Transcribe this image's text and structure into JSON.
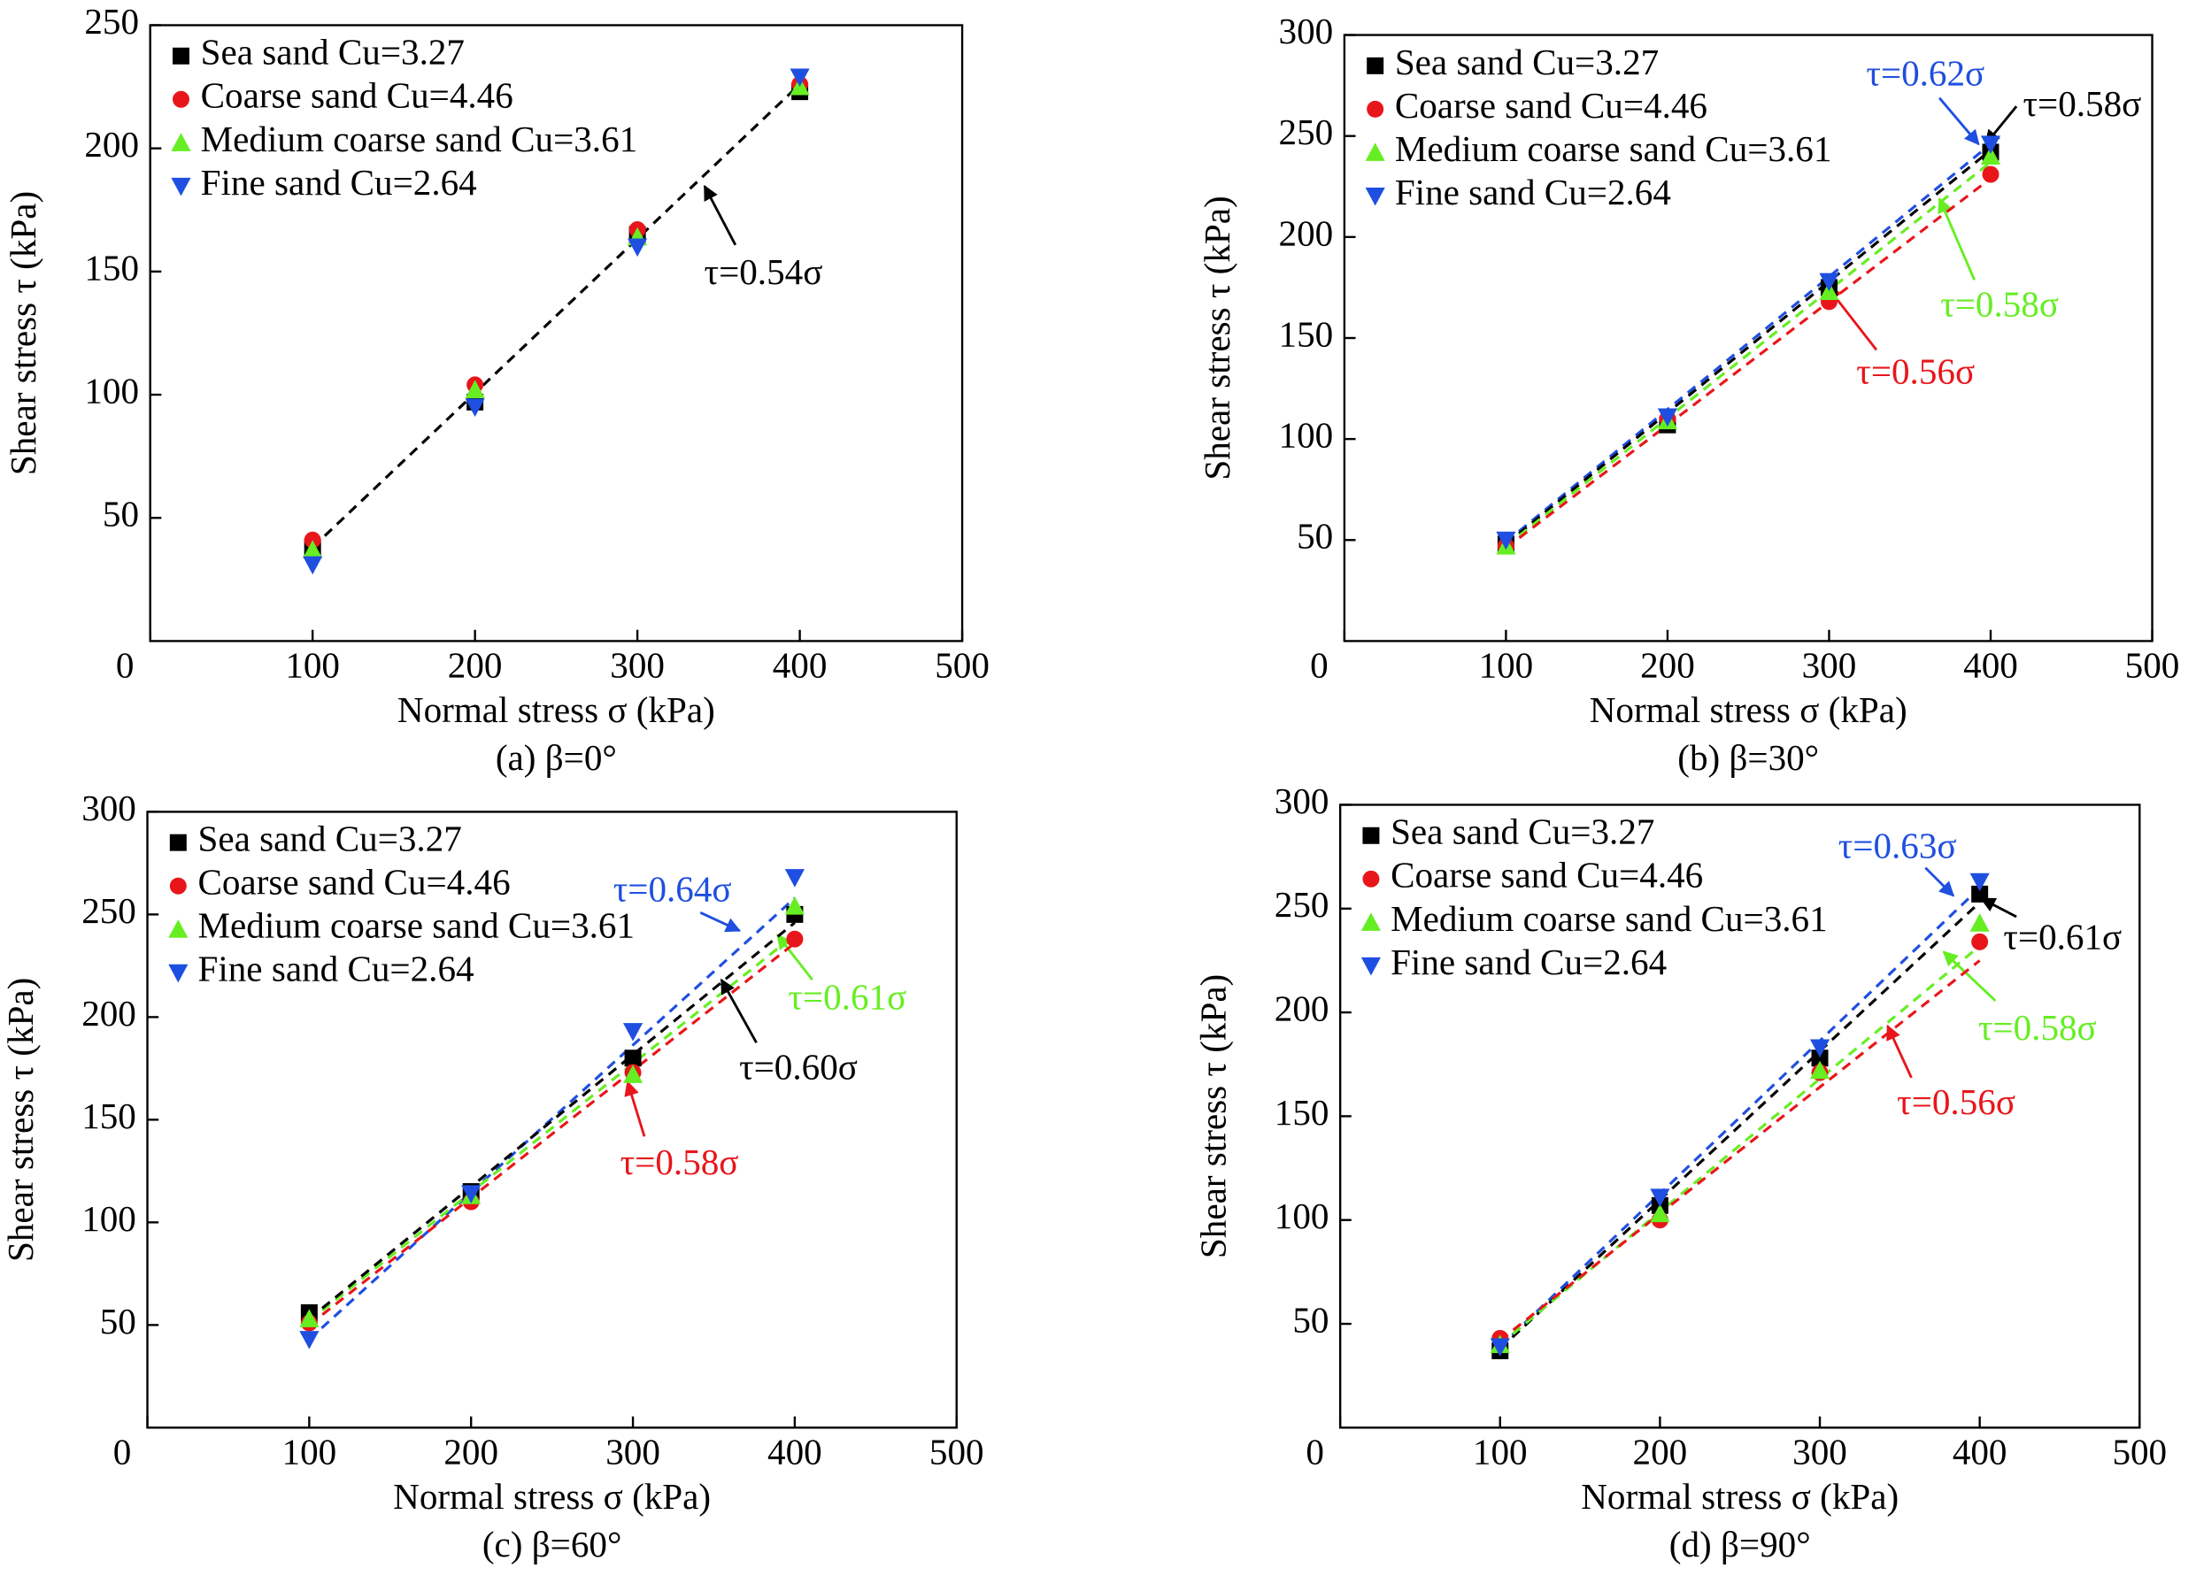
{
  "chart_data": [
    {
      "type": "scatter",
      "caption": "(a) β=0°",
      "xlabel": "Normal stress σ (kPa)",
      "ylabel": "Shear stress τ (kPa)",
      "x": [
        100,
        200,
        300,
        400
      ],
      "xlim": [
        0,
        500
      ],
      "xticks": [
        0,
        100,
        200,
        300,
        400,
        500
      ],
      "ylim": [
        0,
        250
      ],
      "yticks": [
        50,
        100,
        150,
        200,
        250
      ],
      "series": [
        {
          "name": "Sea sand Cu=3.27",
          "color": "#000000",
          "marker": "square",
          "values": [
            38,
            97,
            165,
            223
          ]
        },
        {
          "name": "Coarse sand Cu=4.46",
          "color": "#e8161b",
          "marker": "circle",
          "values": [
            41,
            104,
            167,
            226
          ]
        },
        {
          "name": "Medium coarse sand Cu=3.61",
          "color": "#66ee22",
          "marker": "triangle-up",
          "values": [
            37,
            102,
            164,
            225
          ]
        },
        {
          "name": "Fine sand Cu=2.64",
          "color": "#1f4fe0",
          "marker": "triangle-down",
          "values": [
            31,
            95,
            160,
            229
          ]
        }
      ],
      "fit_lines": [
        {
          "label": "τ=0.54σ",
          "color": "#000000",
          "x": [
            100,
            400
          ],
          "y": [
            38,
            226
          ]
        }
      ]
    },
    {
      "type": "scatter",
      "caption": "(b) β=30°",
      "xlabel": "Normal stress σ (kPa)",
      "ylabel": "Shear stress τ (kPa)",
      "x": [
        100,
        200,
        300,
        400
      ],
      "xlim": [
        0,
        500
      ],
      "xticks": [
        0,
        100,
        200,
        300,
        400,
        500
      ],
      "ylim": [
        0,
        300
      ],
      "yticks": [
        50,
        100,
        150,
        200,
        250,
        300
      ],
      "series": [
        {
          "name": "Sea sand Cu=3.27",
          "color": "#000000",
          "marker": "square",
          "values": [
            48,
            107,
            175,
            242
          ]
        },
        {
          "name": "Coarse sand Cu=4.46",
          "color": "#e8161b",
          "marker": "circle",
          "values": [
            47,
            110,
            168,
            231
          ]
        },
        {
          "name": "Medium coarse sand Cu=3.61",
          "color": "#66ee22",
          "marker": "triangle-up",
          "values": [
            47,
            109,
            173,
            240
          ]
        },
        {
          "name": "Fine sand Cu=2.64",
          "color": "#1f4fe0",
          "marker": "triangle-down",
          "values": [
            50,
            111,
            178,
            246
          ]
        }
      ],
      "fit_lines": [
        {
          "label": "τ=0.62σ",
          "color": "#1f4fe0",
          "x": [
            100,
            400
          ],
          "y": [
            49,
            246
          ]
        },
        {
          "label": "τ=0.58σ",
          "color": "#000000",
          "x": [
            100,
            400
          ],
          "y": [
            48,
            243
          ]
        },
        {
          "label": "τ=0.58σ",
          "color": "#66ee22",
          "x": [
            100,
            400
          ],
          "y": [
            47,
            237
          ]
        },
        {
          "label": "τ=0.56σ",
          "color": "#e8161b",
          "x": [
            100,
            400
          ],
          "y": [
            46,
            229
          ]
        }
      ]
    },
    {
      "type": "scatter",
      "caption": "(c) β=60°",
      "xlabel": "Normal stress σ (kPa)",
      "ylabel": "Shear stress τ (kPa)",
      "x": [
        100,
        200,
        300,
        400
      ],
      "xlim": [
        0,
        500
      ],
      "xticks": [
        0,
        100,
        200,
        300,
        400,
        500
      ],
      "ylim": [
        0,
        300
      ],
      "yticks": [
        50,
        100,
        150,
        200,
        250,
        300
      ],
      "series": [
        {
          "name": "Sea sand Cu=3.27",
          "color": "#000000",
          "marker": "square",
          "values": [
            56,
            115,
            180,
            250
          ]
        },
        {
          "name": "Coarse sand Cu=4.46",
          "color": "#e8161b",
          "marker": "circle",
          "values": [
            51,
            110,
            173,
            238
          ]
        },
        {
          "name": "Medium coarse sand Cu=3.61",
          "color": "#66ee22",
          "marker": "triangle-up",
          "values": [
            53,
            113,
            172,
            254
          ]
        },
        {
          "name": "Fine sand Cu=2.64",
          "color": "#1f4fe0",
          "marker": "triangle-down",
          "values": [
            43,
            114,
            193,
            268
          ]
        }
      ],
      "fit_lines": [
        {
          "label": "τ=0.64σ",
          "color": "#1f4fe0",
          "x": [
            100,
            400
          ],
          "y": [
            43,
            258
          ]
        },
        {
          "label": "τ=0.61σ",
          "color": "#66ee22",
          "x": [
            100,
            400
          ],
          "y": [
            52,
            240
          ]
        },
        {
          "label": "τ=0.60σ",
          "color": "#000000",
          "x": [
            100,
            400
          ],
          "y": [
            53,
            246
          ]
        },
        {
          "label": "τ=0.58σ",
          "color": "#e8161b",
          "x": [
            100,
            400
          ],
          "y": [
            50,
            236
          ]
        }
      ]
    },
    {
      "type": "scatter",
      "caption": "(d) β=90°",
      "xlabel": "Normal stress σ (kPa)",
      "ylabel": "Shear stress τ (kPa)",
      "x": [
        100,
        200,
        300,
        400
      ],
      "xlim": [
        0,
        500
      ],
      "xticks": [
        0,
        100,
        200,
        300,
        400,
        500
      ],
      "ylim": [
        0,
        300
      ],
      "yticks": [
        50,
        100,
        150,
        200,
        250,
        300
      ],
      "series": [
        {
          "name": "Sea sand Cu=3.27",
          "color": "#000000",
          "marker": "square",
          "values": [
            37,
            107,
            178,
            257
          ]
        },
        {
          "name": "Coarse sand Cu=4.46",
          "color": "#e8161b",
          "marker": "circle",
          "values": [
            43,
            100,
            171,
            234
          ]
        },
        {
          "name": "Medium coarse sand Cu=3.61",
          "color": "#66ee22",
          "marker": "triangle-up",
          "values": [
            40,
            103,
            172,
            243
          ]
        },
        {
          "name": "Fine sand Cu=2.64",
          "color": "#1f4fe0",
          "marker": "triangle-down",
          "values": [
            39,
            111,
            183,
            263
          ]
        }
      ],
      "fit_lines": [
        {
          "label": "τ=0.63σ",
          "color": "#1f4fe0",
          "x": [
            100,
            400
          ],
          "y": [
            39,
            260
          ]
        },
        {
          "label": "τ=0.61σ",
          "color": "#000000",
          "x": [
            100,
            400
          ],
          "y": [
            38,
            253
          ]
        },
        {
          "label": "τ=0.58σ",
          "color": "#66ee22",
          "x": [
            100,
            400
          ],
          "y": [
            40,
            232
          ]
        },
        {
          "label": "τ=0.56σ",
          "color": "#e8161b",
          "x": [
            100,
            400
          ],
          "y": [
            42,
            225
          ]
        }
      ]
    }
  ]
}
